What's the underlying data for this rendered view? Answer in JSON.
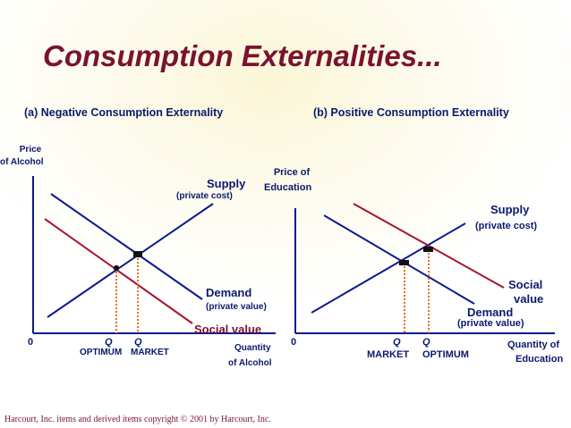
{
  "slide": {
    "title": "Consumption Externalities...",
    "footer": "Harcourt, Inc. items and derived items copyright © 2001 by Harcourt, Inc."
  },
  "panel_a": {
    "title": "(a) Negative Consumption Externality",
    "y_axis_label_line1": "Price",
    "y_axis_label_line2": "of Alcohol",
    "x_axis_label_line1": "Quantity",
    "x_axis_label_line2": "of Alcohol",
    "origin_label": "0",
    "supply_label": "Supply",
    "supply_sublabel": "(private cost)",
    "demand_label": "Demand",
    "demand_sublabel": "(private value)",
    "social_value_label": "Social value",
    "q_optimum": "Q",
    "q_market": "Q",
    "optimum_label": "OPTIMUM",
    "market_label": "MARKET"
  },
  "panel_b": {
    "title": "(b) Positive Consumption Externality",
    "y_axis_label_line1": "Price of",
    "y_axis_label_line2": "Education",
    "x_axis_label_line1": "Quantity of",
    "x_axis_label_line2": "Education",
    "origin_label": "0",
    "supply_label": "Supply",
    "supply_sublabel": "(private cost)",
    "social_value_line1": "Social",
    "social_value_line2": "value",
    "demand_label": "Demand",
    "demand_sublabel": "(private value)",
    "q_market": "Q",
    "q_optimum": "Q",
    "market_label": "MARKET",
    "optimum_label": "OPTIMUM"
  },
  "colors": {
    "title": "#7a1230",
    "text": "#0a1a6b",
    "supply_demand_line": "#0c1a8c",
    "social_value_line": "#a3152d",
    "quantity_guide": "#e8721c",
    "axis": "#0c1a8c"
  }
}
